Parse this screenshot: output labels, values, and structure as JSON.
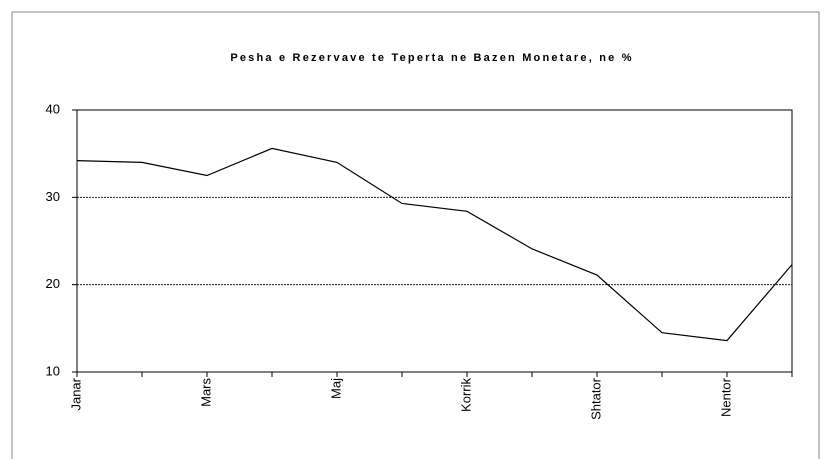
{
  "chart_data": {
    "type": "line",
    "title": "Pesha e Rezervave te Teperta ne Bazen Monetare, ne %",
    "categories": [
      "Janar",
      null,
      "Mars",
      null,
      "Maj",
      null,
      "Korrik",
      null,
      "Shtator",
      null,
      "Nentor",
      null
    ],
    "series": [
      {
        "name": "Pesha",
        "color": "#000000",
        "values": [
          34.2,
          34.0,
          32.5,
          35.6,
          34.0,
          29.3,
          28.4,
          24.1,
          21.1,
          14.5,
          13.6,
          22.3
        ]
      }
    ],
    "ylim": [
      10,
      40
    ],
    "yticks": [
      10,
      20,
      30,
      40
    ],
    "grid": true
  }
}
